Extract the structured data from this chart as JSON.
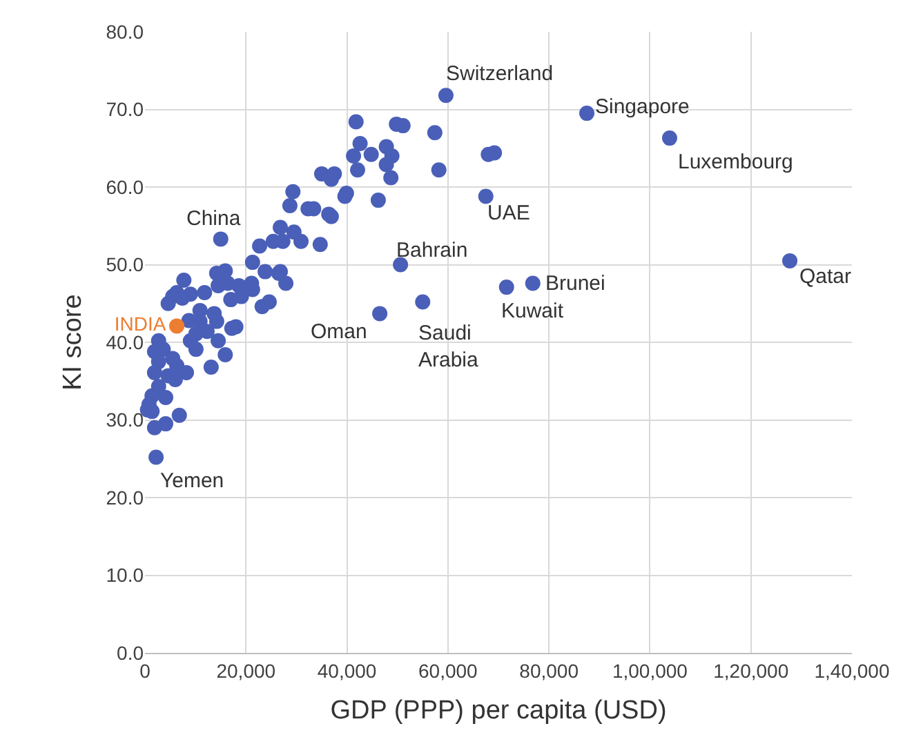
{
  "chart_data": {
    "type": "scatter",
    "xlabel": "GDP (PPP) per capita (USD)",
    "ylabel": "KI score",
    "xlim": [
      0,
      140000
    ],
    "ylim": [
      0,
      80
    ],
    "xticks": [
      0,
      {
        "value": 20000,
        "label": "20,000"
      },
      {
        "value": 40000,
        "label": "40,000"
      },
      {
        "value": 60000,
        "label": "60,000"
      },
      {
        "value": 80000,
        "label": "80,000"
      },
      {
        "value": 100000,
        "label": "1,00,000"
      },
      {
        "value": 120000,
        "label": "1,20,000"
      },
      {
        "value": 140000,
        "label": "1,40,000"
      }
    ],
    "yticks": [
      {
        "value": 0,
        "label": "0.0"
      },
      {
        "value": 10,
        "label": "10.0"
      },
      {
        "value": 20,
        "label": "20.0"
      },
      {
        "value": 30,
        "label": "30.0"
      },
      {
        "value": 40,
        "label": "40.0"
      },
      {
        "value": 50,
        "label": "50.0"
      },
      {
        "value": 60,
        "label": "60.0"
      },
      {
        "value": 70,
        "label": "70.0"
      },
      {
        "value": 80,
        "label": "80.0"
      }
    ],
    "grid": true,
    "legend": false,
    "marker": "circle",
    "series": [
      {
        "color": "#4a5fb8",
        "x": [
          59600,
          87500,
          103900,
          67500,
          127700,
          50600,
          76800,
          71600,
          55000,
          46500,
          15000,
          2200,
          41800,
          49800,
          51100,
          57400,
          69200,
          68000,
          42600,
          41300,
          44800,
          47800,
          48900,
          47800,
          42100,
          48700,
          58200,
          35000,
          37500,
          36900,
          29300,
          28700,
          32300,
          33400,
          36400,
          36900,
          39900,
          46200,
          39600,
          26800,
          29500,
          27300,
          30900,
          34700,
          26800,
          27900,
          22700,
          25400,
          21300,
          15900,
          14200,
          7700,
          6300,
          9000,
          11800,
          14500,
          16400,
          18600,
          21100,
          23800,
          26500,
          4600,
          5500,
          7400,
          17000,
          19100,
          21300,
          23200,
          24600,
          10900,
          13700,
          10900,
          14200,
          17200,
          18000,
          8700,
          10100,
          12300,
          14500,
          9000,
          10100,
          15900,
          13100,
          2700,
          1900,
          3600,
          5500,
          2700,
          6300,
          8200,
          1900,
          4600,
          2700,
          6000,
          1400,
          4100,
          800,
          1400,
          6800,
          4100,
          1900,
          500
        ],
        "values": [
          71.8,
          69.5,
          66.3,
          58.8,
          50.5,
          50.0,
          47.6,
          47.1,
          45.2,
          43.7,
          53.3,
          25.2,
          68.4,
          68.1,
          67.9,
          67.0,
          64.4,
          64.2,
          65.6,
          64.0,
          64.2,
          65.2,
          64.0,
          62.9,
          62.2,
          61.2,
          62.2,
          61.7,
          61.7,
          61.0,
          59.4,
          57.6,
          57.2,
          57.2,
          56.5,
          56.2,
          59.2,
          58.3,
          58.8,
          54.8,
          54.2,
          53.0,
          53.0,
          52.6,
          49.1,
          47.6,
          52.4,
          53.0,
          50.3,
          49.2,
          48.9,
          48.0,
          46.4,
          46.2,
          46.4,
          47.3,
          47.6,
          47.3,
          47.6,
          49.1,
          48.9,
          45.0,
          45.9,
          45.7,
          45.5,
          45.9,
          46.8,
          44.6,
          45.2,
          44.1,
          43.7,
          42.7,
          42.7,
          41.8,
          42.0,
          42.8,
          41.1,
          41.4,
          40.2,
          40.2,
          39.1,
          38.4,
          36.8,
          40.2,
          38.8,
          39.1,
          37.9,
          37.5,
          37.0,
          36.1,
          36.1,
          35.7,
          34.3,
          35.2,
          33.1,
          32.9,
          32.0,
          31.1,
          30.6,
          29.5,
          29.0,
          31.3
        ]
      },
      {
        "name": "INDIA",
        "color": "#ed7d31",
        "x": [
          6300
        ],
        "values": [
          42.1
        ]
      }
    ],
    "annotations": [
      {
        "text": "Switzerland",
        "x": 59600,
        "y": 71.8
      },
      {
        "text": "Singapore",
        "x": 87500,
        "y": 69.5
      },
      {
        "text": "Luxembourg",
        "x": 103900,
        "y": 66.3
      },
      {
        "text": "UAE",
        "x": 67500,
        "y": 58.8
      },
      {
        "text": "Qatar",
        "x": 127700,
        "y": 50.5
      },
      {
        "text": "Bahrain",
        "x": 50600,
        "y": 50.0
      },
      {
        "text": "Brunei",
        "x": 76800,
        "y": 47.6
      },
      {
        "text": "Kuwait",
        "x": 71600,
        "y": 47.1
      },
      {
        "text": "Saudi\nArabia",
        "x": 55000,
        "y": 45.2
      },
      {
        "text": "Oman",
        "x": 46500,
        "y": 43.7
      },
      {
        "text": "China",
        "x": 15000,
        "y": 53.3
      },
      {
        "text": "Yemen",
        "x": 2200,
        "y": 25.2
      }
    ]
  }
}
